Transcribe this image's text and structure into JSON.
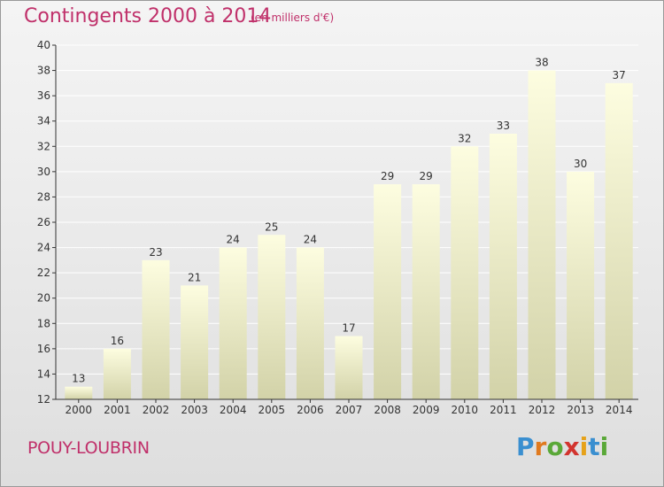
{
  "header": {
    "title": "Contingents 2000 à 2014",
    "subtitle": "(en milliers d'€)"
  },
  "footer": {
    "place": "POUY-LOUBRIN",
    "logo": {
      "letters": [
        "P",
        "r",
        "o",
        "x",
        "i",
        "t",
        "i"
      ],
      "colors": [
        "#3a8fd0",
        "#e07a1f",
        "#5aa838",
        "#d2342e",
        "#e6a21a",
        "#3a8fd0",
        "#5aa838"
      ]
    }
  },
  "chart_data": {
    "type": "bar",
    "title": "Contingents 2000 à 2014",
    "subtitle": "(en milliers d'€)",
    "categories": [
      "2000",
      "2001",
      "2002",
      "2003",
      "2004",
      "2005",
      "2006",
      "2007",
      "2008",
      "2009",
      "2010",
      "2011",
      "2012",
      "2013",
      "2014"
    ],
    "values": [
      13,
      16,
      23,
      21,
      24,
      25,
      24,
      17,
      29,
      29,
      32,
      33,
      38,
      30,
      37
    ],
    "ylim": [
      12,
      40
    ],
    "yticks": [
      12,
      14,
      16,
      18,
      20,
      22,
      24,
      26,
      28,
      30,
      32,
      34,
      36,
      38,
      40
    ],
    "grid": true,
    "data_labels": true,
    "bar_color_top": "#fdfde0",
    "bar_color_bottom": "#d2d2a8",
    "grid_color": "#ffffff"
  }
}
